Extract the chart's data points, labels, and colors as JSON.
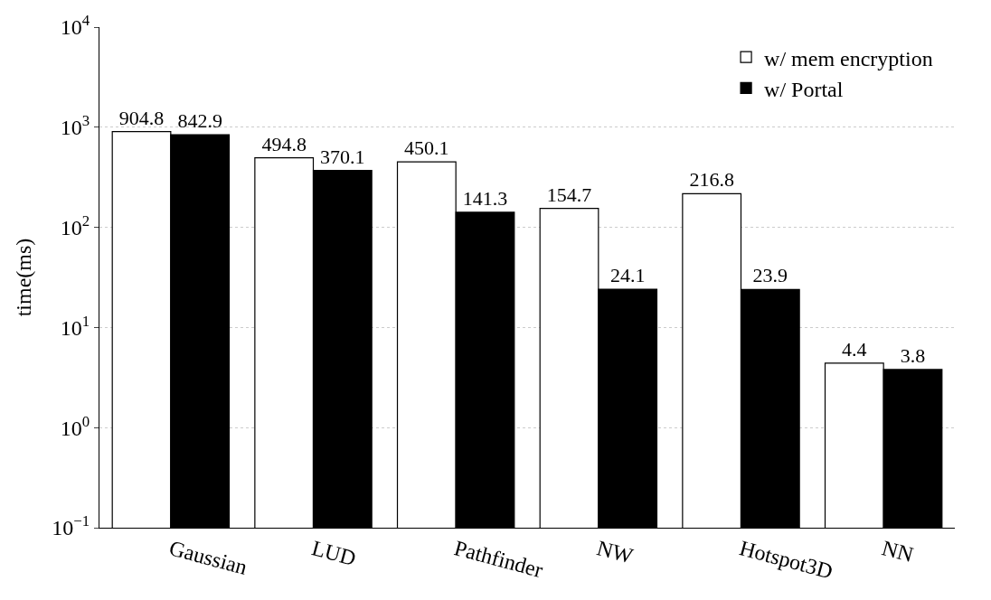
{
  "chart_data": {
    "type": "bar",
    "ylabel": "time(ms)",
    "categories": [
      "Gaussian",
      "LUD",
      "Pathfinder",
      "NW",
      "Hotspot3D",
      "NN"
    ],
    "series": [
      {
        "name": "w/ mem encryption",
        "color": "#ffffff",
        "values": [
          904.8,
          494.8,
          450.1,
          154.7,
          216.8,
          4.4
        ]
      },
      {
        "name": "w/ Portal",
        "color": "#000000",
        "values": [
          842.9,
          370.1,
          141.3,
          24.1,
          23.9,
          3.8
        ]
      }
    ],
    "log": "y",
    "ylim": [
      0.1,
      10000
    ],
    "yticks": [
      {
        "value": 0.1,
        "label": "10$^{−1}$"
      },
      {
        "value": 1,
        "label": "10$^{0}$"
      },
      {
        "value": 10,
        "label": "10$^{1}$"
      },
      {
        "value": 100,
        "label": "10$^{2}$"
      },
      {
        "value": 1000,
        "label": "10$^{3}$"
      },
      {
        "value": 10000,
        "label": "10$^{4}$"
      }
    ],
    "grid": "y",
    "legend": "top right",
    "data_labels": true
  }
}
